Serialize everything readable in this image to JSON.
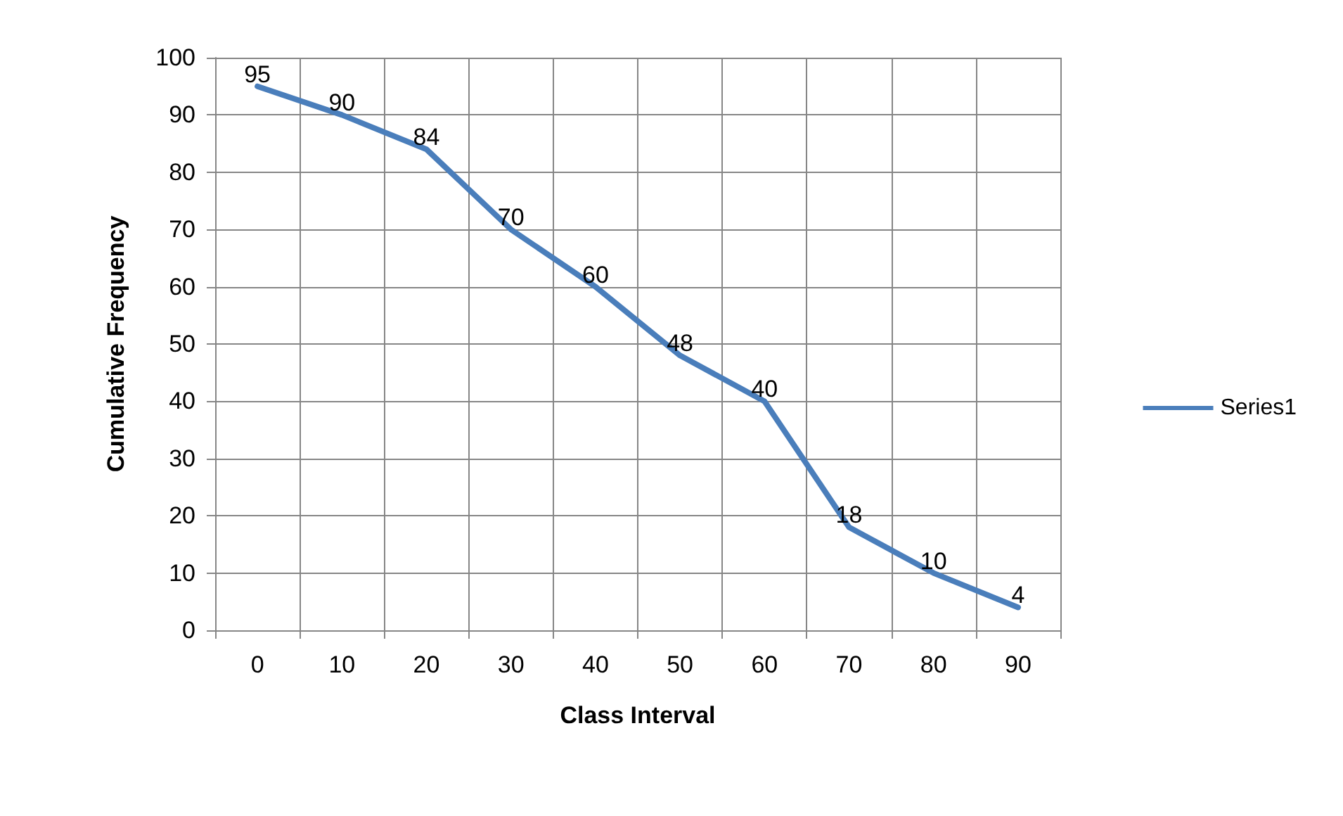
{
  "chart_data": {
    "type": "line",
    "xlabel": "Class Interval",
    "ylabel": "Cumulative Frequency",
    "categories": [
      "0",
      "10",
      "20",
      "30",
      "40",
      "50",
      "60",
      "70",
      "80",
      "90"
    ],
    "series": [
      {
        "name": "Series1",
        "color": "#4a7ebb",
        "values": [
          95,
          90,
          84,
          70,
          60,
          48,
          40,
          18,
          10,
          4
        ]
      }
    ],
    "ylim": [
      0,
      100
    ],
    "yticks": [
      0,
      10,
      20,
      30,
      40,
      50,
      60,
      70,
      80,
      90,
      100
    ],
    "grid": true,
    "legend": "right",
    "marker": "none",
    "line_style": "solid",
    "data_labels": true
  }
}
